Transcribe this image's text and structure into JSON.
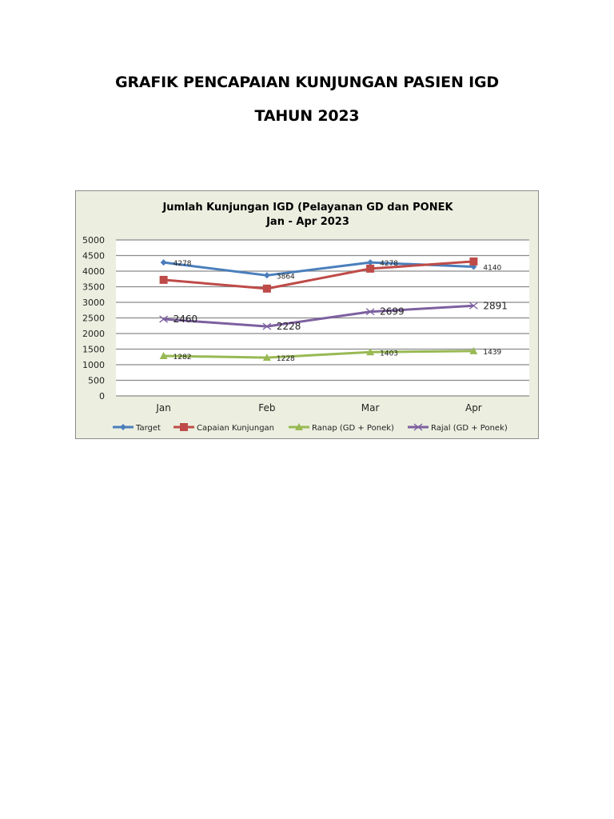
{
  "page": {
    "title_line1": "GRAFIK PENCAPAIAN KUNJUNGAN PASIEN IGD",
    "title_line2": "TAHUN 2023"
  },
  "chart_data": {
    "type": "line",
    "title": "Jumlah Kunjungan IGD (Pelayanan GD dan PONEK",
    "subtitle": "Jan - Apr 2023",
    "xlabel": "",
    "ylabel": "",
    "categories": [
      "Jan",
      "Feb",
      "Mar",
      "Apr"
    ],
    "ylim": [
      0,
      5000
    ],
    "yticks": [
      0,
      500,
      1000,
      1500,
      2000,
      2500,
      3000,
      3500,
      4000,
      4500,
      5000
    ],
    "grid": true,
    "legend_position": "bottom",
    "background": "#ecefe0",
    "series": [
      {
        "name": "Target",
        "color": "#4a7ebb",
        "marker": "diamond",
        "values": [
          4278,
          3864,
          4278,
          4140
        ],
        "labels_shown": true
      },
      {
        "name": "Capaian Kunjungan",
        "color": "#be4b48",
        "marker": "square",
        "values": [
          3720,
          3440,
          4080,
          4310
        ],
        "labels_shown": false
      },
      {
        "name": "Ranap (GD + Ponek)",
        "color": "#98b954",
        "marker": "triangle",
        "values": [
          1282,
          1228,
          1403,
          1439
        ],
        "labels_shown": true
      },
      {
        "name": "Rajal (GD + Ponek)",
        "color": "#7d60a0",
        "marker": "x",
        "values": [
          2460,
          2228,
          2699,
          2891
        ],
        "labels_shown": true
      }
    ]
  }
}
